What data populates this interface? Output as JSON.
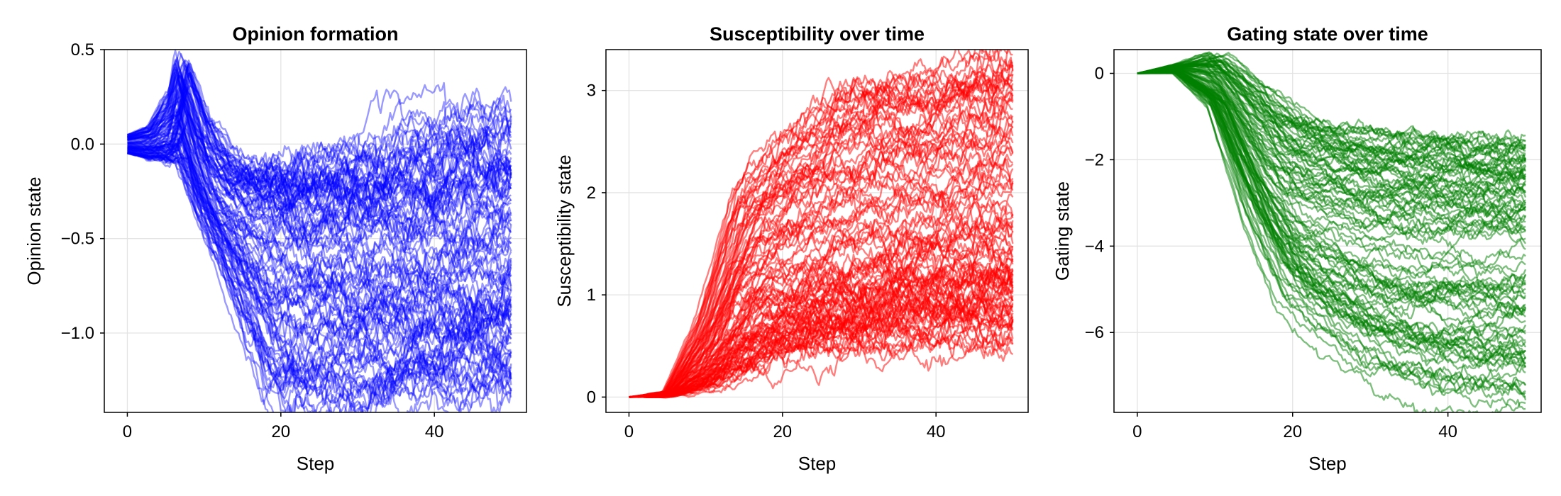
{
  "chart_data": [
    {
      "type": "line",
      "title": "Opinion formation",
      "xlabel": "Step",
      "ylabel": "Opinion state",
      "xlim": [
        -3,
        52
      ],
      "ylim": [
        -1.42,
        0.5
      ],
      "xticks": [
        0,
        20,
        40
      ],
      "xtick_labels": [
        "0",
        "20",
        "40"
      ],
      "yticks": [
        0.5,
        0.0,
        -0.5,
        -1.0
      ],
      "ytick_labels": [
        "0.5",
        "0.0",
        "−0.5",
        "−1.0"
      ],
      "grid": true,
      "color": "#0000ff",
      "alpha": 0.4,
      "n_series": 100,
      "steps": 50,
      "series_summary": {
        "x": [
          0,
          3,
          6,
          7,
          10,
          15,
          20,
          30,
          40,
          50
        ],
        "median": [
          0.0,
          0.0,
          0.05,
          0.3,
          -0.15,
          -0.4,
          -0.45,
          -0.5,
          -0.5,
          -0.5
        ],
        "min": [
          -0.05,
          -0.08,
          -0.1,
          -0.1,
          -0.4,
          -0.85,
          -1.4,
          -1.35,
          -1.3,
          -1.25
        ],
        "max": [
          0.05,
          0.1,
          0.3,
          0.47,
          0.15,
          -0.1,
          -0.1,
          -0.05,
          0.1,
          0.2
        ]
      }
    },
    {
      "type": "line",
      "title": "Susceptibility over time",
      "xlabel": "Step",
      "ylabel": "Susceptibility state",
      "xlim": [
        -3,
        52
      ],
      "ylim": [
        -0.15,
        3.4
      ],
      "xticks": [
        0,
        20,
        40
      ],
      "xtick_labels": [
        "0",
        "20",
        "40"
      ],
      "yticks": [
        0,
        1,
        2,
        3
      ],
      "ytick_labels": [
        "0",
        "1",
        "2",
        "3"
      ],
      "grid": true,
      "color": "#ff0000",
      "alpha": 0.5,
      "n_series": 100,
      "steps": 50,
      "series_summary": {
        "x": [
          0,
          5,
          10,
          15,
          20,
          30,
          40,
          50
        ],
        "median": [
          0.0,
          0.02,
          0.3,
          0.9,
          1.1,
          1.3,
          1.5,
          1.6
        ],
        "min": [
          0.0,
          0.0,
          0.05,
          0.2,
          0.3,
          0.45,
          0.5,
          0.5
        ],
        "max": [
          0.0,
          0.05,
          0.8,
          2.0,
          2.4,
          3.05,
          3.0,
          3.35
        ]
      }
    },
    {
      "type": "line",
      "title": "Gating state over time",
      "xlabel": "Step",
      "ylabel": "Gating state",
      "xlim": [
        -3,
        52
      ],
      "ylim": [
        -7.85,
        0.55
      ],
      "xticks": [
        0,
        20,
        40
      ],
      "xtick_labels": [
        "0",
        "20",
        "40"
      ],
      "yticks": [
        0,
        -2,
        -4,
        -6
      ],
      "ytick_labels": [
        "0",
        "−2",
        "−4",
        "−6"
      ],
      "grid": true,
      "color": "#008000",
      "alpha": 0.5,
      "n_series": 100,
      "steps": 50,
      "series_summary": {
        "x": [
          0,
          5,
          10,
          15,
          20,
          30,
          40,
          50
        ],
        "median": [
          0.0,
          0.1,
          -0.4,
          -2.0,
          -3.2,
          -3.8,
          -4.0,
          -4.0
        ],
        "min": [
          0.0,
          0.0,
          -0.8,
          -3.5,
          -5.5,
          -7.0,
          -7.6,
          -7.8
        ],
        "max": [
          0.0,
          0.2,
          0.5,
          -0.2,
          -0.9,
          -1.3,
          -1.5,
          -1.5
        ]
      }
    }
  ]
}
